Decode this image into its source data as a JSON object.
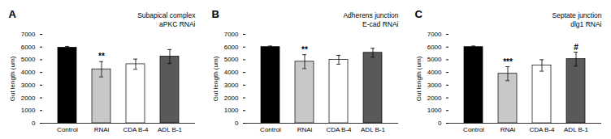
{
  "chart_data": [
    {
      "type": "bar",
      "title": "A",
      "subtitle": [
        "Subapical complex",
        "aPKC RNAi"
      ],
      "y_label": "Gut length (um)",
      "categories": [
        "Control",
        "RNAi",
        "CDA B-4",
        "ADL B-1"
      ],
      "values": [
        5950,
        4250,
        4650,
        5250
      ],
      "errors": [
        100,
        600,
        400,
        550
      ],
      "significance": [
        null,
        "**",
        null,
        null
      ],
      "colors": [
        "#000000",
        "#c8c8c8",
        "#ffffff",
        "#595959"
      ],
      "ylim": [
        0,
        7000
      ],
      "yticks": [
        0,
        1000,
        2000,
        3000,
        4000,
        5000,
        6000,
        7000
      ],
      "grid": false
    },
    {
      "type": "bar",
      "title": "B",
      "subtitle": [
        "Adherens junction",
        "E-cad RNAi"
      ],
      "y_label": "Gut length (um)",
      "categories": [
        "Control",
        "RNAi",
        "CDA B-4",
        "ADL B-1"
      ],
      "values": [
        6000,
        4850,
        5000,
        5550
      ],
      "errors": [
        80,
        550,
        350,
        350
      ],
      "significance": [
        null,
        "**",
        null,
        null
      ],
      "colors": [
        "#000000",
        "#c8c8c8",
        "#ffffff",
        "#595959"
      ],
      "ylim": [
        0,
        7000
      ],
      "yticks": [
        0,
        1000,
        2000,
        3000,
        4000,
        5000,
        6000,
        7000
      ],
      "grid": false
    },
    {
      "type": "bar",
      "title": "C",
      "subtitle": [
        "Septate junction",
        "dlg1 RNAi"
      ],
      "y_label": "Gut length (um)",
      "categories": [
        "Control",
        "RNAi",
        "CDA B-4",
        "ADL B-1"
      ],
      "values": [
        6000,
        3900,
        4550,
        5050
      ],
      "errors": [
        80,
        550,
        450,
        550
      ],
      "significance": [
        null,
        "***",
        null,
        "#"
      ],
      "colors": [
        "#000000",
        "#c8c8c8",
        "#ffffff",
        "#595959"
      ],
      "ylim": [
        0,
        7000
      ],
      "yticks": [
        0,
        1000,
        2000,
        3000,
        4000,
        5000,
        6000,
        7000
      ],
      "grid": false
    }
  ]
}
